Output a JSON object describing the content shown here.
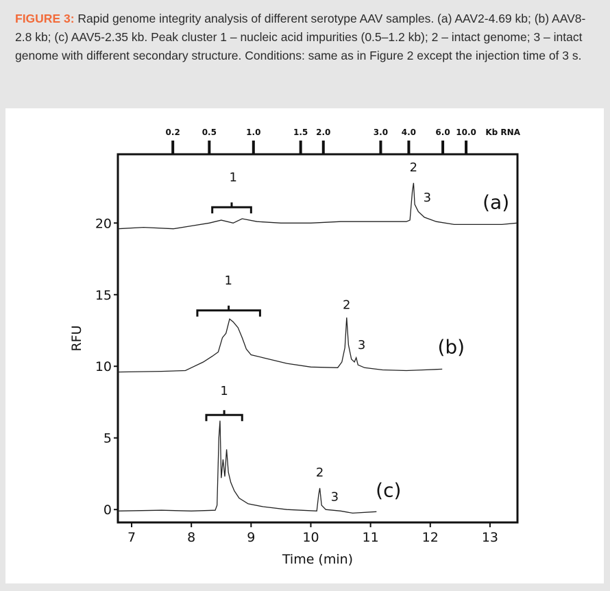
{
  "caption": {
    "label": "FIGURE 3:",
    "text": " Rapid genome integrity analysis of different serotype AAV samples. (a) AAV2-4.69 kb; (b) AAV8-2.8 kb; (c) AAV5-2.35 kb. Peak cluster 1 – nucleic acid impurities (0.5–1.2 kb); 2 – intact genome; 3 – intact genome with different secondary structure. Conditions: same as in Figure 2 except the injection time of 3 s.",
    "label_color": "#f26b3a"
  },
  "chart_data": {
    "type": "line",
    "xlabel": "Time (min)",
    "ylabel": "RFU",
    "xlim": [
      6.77,
      13.46
    ],
    "ylim": [
      -0.9,
      24.8
    ],
    "xticks": [
      7,
      8,
      9,
      10,
      11,
      12,
      13
    ],
    "yticks": [
      0,
      5,
      10,
      15,
      20
    ],
    "grid": false,
    "top_axis": {
      "label": "Kb RNA",
      "ticks": [
        {
          "label": "0.2",
          "time": 7.69
        },
        {
          "label": "0.5",
          "time": 8.3
        },
        {
          "label": "1.0",
          "time": 9.04
        },
        {
          "label": "1.5",
          "time": 9.83
        },
        {
          "label": "2.0",
          "time": 10.21
        },
        {
          "label": "3.0",
          "time": 11.17
        },
        {
          "label": "4.0",
          "time": 11.64
        },
        {
          "label": "6.0",
          "time": 12.21
        },
        {
          "label": "10.0",
          "time": 12.6
        }
      ]
    },
    "series": [
      {
        "name": "(a)",
        "label_pos": [
          13.1,
          21.0
        ],
        "points": [
          [
            6.77,
            19.6
          ],
          [
            7.2,
            19.7
          ],
          [
            7.7,
            19.6
          ],
          [
            8.0,
            19.8
          ],
          [
            8.3,
            20.0
          ],
          [
            8.5,
            20.2
          ],
          [
            8.7,
            20.0
          ],
          [
            8.85,
            20.3
          ],
          [
            9.1,
            20.1
          ],
          [
            9.5,
            20.0
          ],
          [
            10.0,
            20.0
          ],
          [
            10.5,
            20.1
          ],
          [
            11.0,
            20.1
          ],
          [
            11.6,
            20.1
          ],
          [
            11.66,
            20.2
          ],
          [
            11.7,
            22.2
          ],
          [
            11.72,
            22.8
          ],
          [
            11.74,
            21.3
          ],
          [
            11.8,
            20.8
          ],
          [
            11.9,
            20.4
          ],
          [
            12.1,
            20.1
          ],
          [
            12.4,
            19.9
          ],
          [
            12.8,
            19.9
          ],
          [
            13.2,
            19.9
          ],
          [
            13.45,
            20.0
          ]
        ],
        "annotations": [
          {
            "text": "1",
            "x": 8.7,
            "y": 22.9,
            "bracket": [
              8.35,
              9.0,
              21.1
            ]
          },
          {
            "text": "2",
            "x": 11.72,
            "y": 23.6
          },
          {
            "text": "3",
            "x": 11.95,
            "y": 21.5
          }
        ]
      },
      {
        "name": "(b)",
        "label_pos": [
          12.35,
          10.9
        ],
        "points": [
          [
            6.77,
            9.6
          ],
          [
            7.5,
            9.65
          ],
          [
            7.9,
            9.7
          ],
          [
            8.0,
            9.9
          ],
          [
            8.2,
            10.3
          ],
          [
            8.35,
            10.7
          ],
          [
            8.45,
            11.0
          ],
          [
            8.52,
            12.0
          ],
          [
            8.58,
            12.3
          ],
          [
            8.64,
            13.3
          ],
          [
            8.7,
            13.1
          ],
          [
            8.78,
            12.7
          ],
          [
            8.85,
            12.0
          ],
          [
            8.92,
            11.2
          ],
          [
            9.0,
            10.8
          ],
          [
            9.2,
            10.6
          ],
          [
            9.6,
            10.2
          ],
          [
            10.0,
            9.95
          ],
          [
            10.45,
            9.9
          ],
          [
            10.52,
            10.3
          ],
          [
            10.57,
            11.3
          ],
          [
            10.6,
            13.4
          ],
          [
            10.63,
            11.5
          ],
          [
            10.68,
            10.5
          ],
          [
            10.73,
            10.3
          ],
          [
            10.76,
            10.6
          ],
          [
            10.79,
            10.1
          ],
          [
            10.9,
            9.9
          ],
          [
            11.2,
            9.75
          ],
          [
            11.6,
            9.7
          ],
          [
            11.9,
            9.75
          ],
          [
            12.2,
            9.8
          ]
        ],
        "annotations": [
          {
            "text": "1",
            "x": 8.62,
            "y": 15.7,
            "bracket": [
              8.1,
              9.15,
              13.9
            ]
          },
          {
            "text": "2",
            "x": 10.6,
            "y": 14.0
          },
          {
            "text": "3",
            "x": 10.85,
            "y": 11.2
          }
        ]
      },
      {
        "name": "(c)",
        "label_pos": [
          11.3,
          0.9
        ],
        "points": [
          [
            6.77,
            -0.1
          ],
          [
            7.5,
            -0.05
          ],
          [
            8.0,
            -0.1
          ],
          [
            8.4,
            -0.05
          ],
          [
            8.43,
            0.3
          ],
          [
            8.46,
            5.0
          ],
          [
            8.48,
            6.2
          ],
          [
            8.5,
            2.2
          ],
          [
            8.53,
            3.5
          ],
          [
            8.56,
            2.3
          ],
          [
            8.59,
            4.2
          ],
          [
            8.62,
            2.6
          ],
          [
            8.66,
            1.9
          ],
          [
            8.72,
            1.3
          ],
          [
            8.8,
            0.8
          ],
          [
            8.95,
            0.4
          ],
          [
            9.2,
            0.2
          ],
          [
            9.6,
            0.0
          ],
          [
            10.1,
            -0.1
          ],
          [
            10.13,
            1.0
          ],
          [
            10.15,
            1.5
          ],
          [
            10.18,
            0.3
          ],
          [
            10.25,
            0.0
          ],
          [
            10.5,
            -0.1
          ],
          [
            10.7,
            -0.25
          ],
          [
            11.1,
            -0.15
          ]
        ],
        "annotations": [
          {
            "text": "1",
            "x": 8.55,
            "y": 8.0,
            "bracket": [
              8.25,
              8.85,
              6.6
            ]
          },
          {
            "text": "2",
            "x": 10.15,
            "y": 2.3
          },
          {
            "text": "3",
            "x": 10.4,
            "y": 0.6
          }
        ]
      }
    ]
  }
}
